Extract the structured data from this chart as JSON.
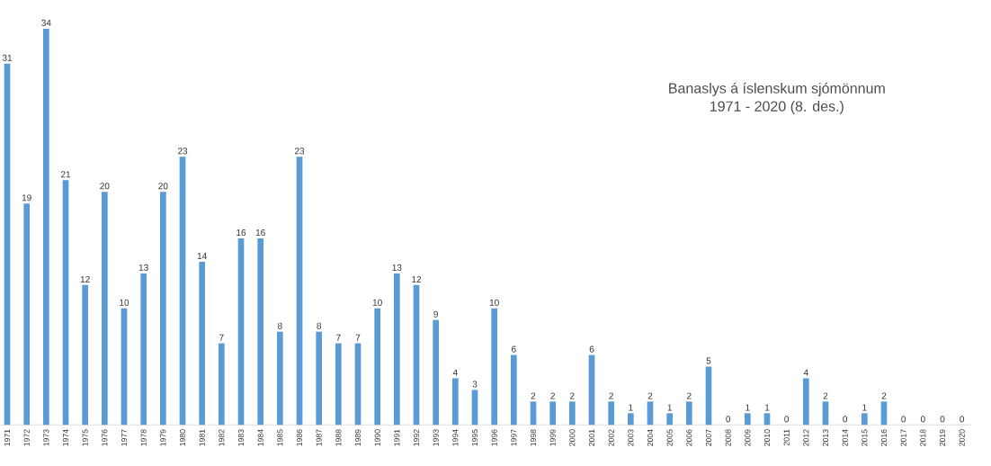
{
  "chart_data": {
    "type": "bar",
    "title": "Banaslys á íslenskum sjómönnum",
    "subtitle": "1971 - 2020 (8. des.)",
    "data_labels": true,
    "color": "#5b9bd5",
    "categories": [
      "1971",
      "1972",
      "1973",
      "1974",
      "1975",
      "1976",
      "1977",
      "1978",
      "1979",
      "1980",
      "1981",
      "1982",
      "1983",
      "1984",
      "1985",
      "1986",
      "1987",
      "1988",
      "1989",
      "1990",
      "1991",
      "1992",
      "1993",
      "1994",
      "1995",
      "1996",
      "1997",
      "1998",
      "1999",
      "2000",
      "2001",
      "2002",
      "2003",
      "2004",
      "2005",
      "2006",
      "2007",
      "2008",
      "2009",
      "2010",
      "2011",
      "2012",
      "2013",
      "2014",
      "2015",
      "2016",
      "2017",
      "2018",
      "2019",
      "2020"
    ],
    "values": [
      31,
      19,
      34,
      21,
      12,
      20,
      10,
      13,
      20,
      23,
      14,
      7,
      16,
      16,
      8,
      23,
      8,
      7,
      7,
      10,
      13,
      12,
      9,
      4,
      3,
      10,
      6,
      2,
      2,
      2,
      6,
      2,
      1,
      2,
      1,
      2,
      5,
      0,
      1,
      1,
      0,
      4,
      2,
      0,
      1,
      2,
      0,
      0,
      0,
      0
    ]
  }
}
